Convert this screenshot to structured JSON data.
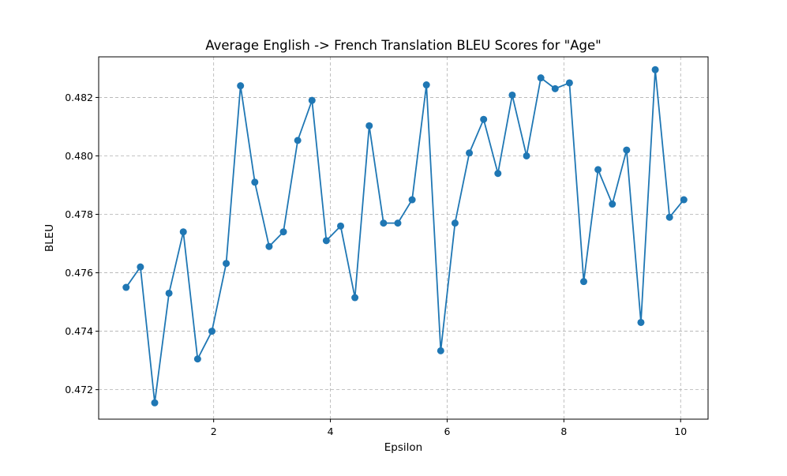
{
  "chart_data": {
    "type": "line",
    "title": "Average English -> French Translation BLEU Scores for \"Age\"",
    "xlabel": "Epsilon",
    "ylabel": "BLEU",
    "xlim": [
      0.03,
      10.47
    ],
    "ylim": [
      0.47099,
      0.48339
    ],
    "x_ticks": [
      2,
      4,
      6,
      8,
      10
    ],
    "x_tick_labels": [
      "2",
      "4",
      "6",
      "8",
      "10"
    ],
    "y_ticks": [
      0.472,
      0.474,
      0.476,
      0.478,
      0.48,
      0.482
    ],
    "y_tick_labels": [
      "0.472",
      "0.474",
      "0.476",
      "0.478",
      "0.480",
      "0.482"
    ],
    "grid": true,
    "line_color": "#1f77b4",
    "marker": "circle",
    "series": [
      {
        "x": [
          0.5,
          0.745,
          0.99,
          1.235,
          1.48,
          1.725,
          1.97,
          2.215,
          2.46,
          2.705,
          2.95,
          3.195,
          3.44,
          3.685,
          3.93,
          4.175,
          4.42,
          4.665,
          4.91,
          5.155,
          5.4,
          5.645,
          5.89,
          6.135,
          6.38,
          6.625,
          6.87,
          7.115,
          7.36,
          7.605,
          7.85,
          8.095,
          8.34,
          8.585,
          8.83,
          9.075,
          9.32,
          9.565,
          9.81,
          10.055
        ],
        "values": [
          0.4755,
          0.4762,
          0.47155,
          0.4753,
          0.4774,
          0.47305,
          0.474,
          0.47632,
          0.4824,
          0.4791,
          0.4769,
          0.4774,
          0.48053,
          0.4819,
          0.4771,
          0.4776,
          0.47515,
          0.48103,
          0.4777,
          0.4777,
          0.4785,
          0.48243,
          0.47333,
          0.4777,
          0.4801,
          0.48125,
          0.4794,
          0.48208,
          0.48,
          0.48267,
          0.4823,
          0.4825,
          0.4757,
          0.47953,
          0.47835,
          0.4802,
          0.4743,
          0.48295,
          0.4779,
          0.4785
        ]
      }
    ]
  }
}
